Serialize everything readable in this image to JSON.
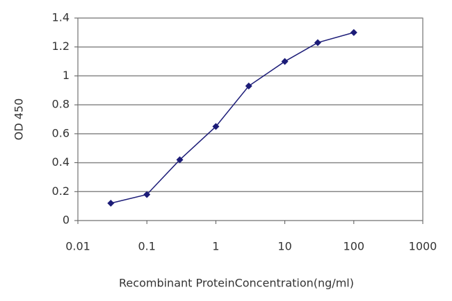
{
  "chart_data": {
    "type": "line",
    "x_label": "Recombinant ProteinConcentration(ng/ml)",
    "y_label": "OD 450",
    "x": [
      0.03,
      0.1,
      0.3,
      1,
      3,
      10,
      30,
      100
    ],
    "series": [
      {
        "color": "#1c1c78",
        "values": [
          0.12,
          0.18,
          0.42,
          0.65,
          0.93,
          1.1,
          1.23,
          1.3
        ]
      }
    ],
    "xlim": [
      0.01,
      1000
    ],
    "xticks": [
      0.01,
      0.1,
      1,
      10,
      100,
      1000
    ],
    "xscale": "log",
    "ylim": [
      0,
      1.4
    ],
    "yticks": [
      0,
      0.2,
      0.4,
      0.6,
      0.8,
      1,
      1.2,
      1.4
    ],
    "grid": true
  }
}
